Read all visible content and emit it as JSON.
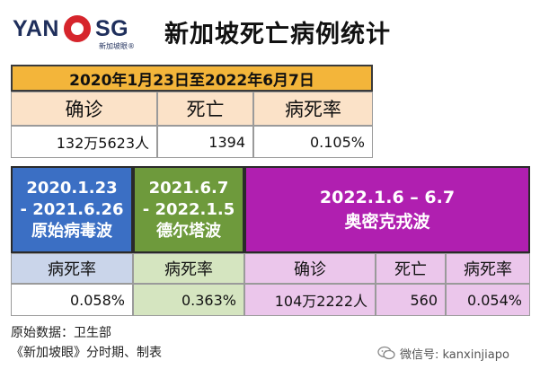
{
  "header": {
    "logo_text": "YANOSG",
    "logo_sub": "新加坡眼®",
    "title": "新加坡死亡病例统计"
  },
  "overall": {
    "period": "2020年1月23日至2022年6月7日",
    "columns": [
      "确诊",
      "死亡",
      "病死率"
    ],
    "values": [
      "132万5623人",
      "1394",
      "0.105%"
    ]
  },
  "waves": [
    {
      "period_line1": "2020.1.23",
      "period_line2": "- 2021.6.26",
      "name": "原始病毒波",
      "label": "病死率",
      "value": "0.058%",
      "color": "#3b6fc4"
    },
    {
      "period_line1": "2021.6.7",
      "period_line2": "- 2022.1.5",
      "name": "德尔塔波",
      "label": "病死率",
      "value": "0.363%",
      "color": "#6e9a3c"
    },
    {
      "period": "2022.1.6 – 6.7",
      "name": "奥密克戎波",
      "columns": [
        "确诊",
        "死亡",
        "病死率"
      ],
      "values": [
        "104万2222人",
        "560",
        "0.054%"
      ],
      "color": "#b01fb0"
    }
  ],
  "footer": {
    "source": "原始数据：卫生部",
    "credit": "《新加坡眼》分时期、制表",
    "wechat": "微信号: kanxinjiapo"
  }
}
